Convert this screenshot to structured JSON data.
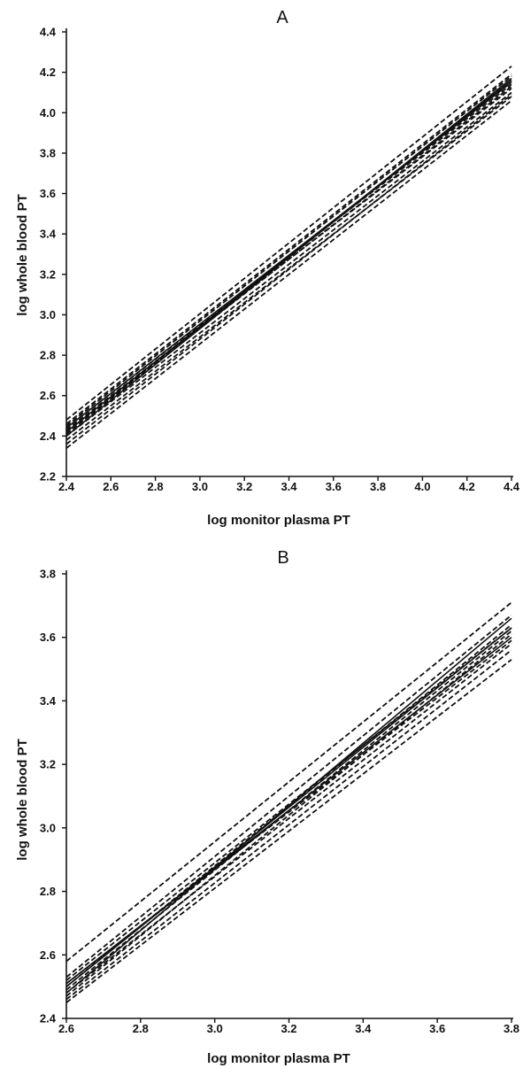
{
  "chart_data": [
    {
      "type": "line",
      "title": "A",
      "xlabel": "log monitor plasma PT",
      "ylabel": "log whole blood PT",
      "xlim": [
        2.4,
        4.4
      ],
      "ylim": [
        2.2,
        4.4
      ],
      "x_ticks": [
        "2.4",
        "2.6",
        "2.8",
        "3.0",
        "3.2",
        "3.4",
        "3.6",
        "3.8",
        "4.0",
        "4.2",
        "4.4"
      ],
      "y_ticks": [
        "2.2",
        "2.4",
        "2.6",
        "2.8",
        "3.0",
        "3.2",
        "3.4",
        "3.6",
        "3.8",
        "4.0",
        "4.2",
        "4.4"
      ],
      "grid": false,
      "series": [
        {
          "style": "solid",
          "x": [
            2.4,
            4.4
          ],
          "y": [
            2.42,
            4.16
          ]
        },
        {
          "style": "solid",
          "x": [
            2.4,
            4.4
          ],
          "y": [
            2.44,
            4.15
          ]
        },
        {
          "style": "solid",
          "x": [
            2.4,
            4.4
          ],
          "y": [
            2.4,
            4.17
          ]
        },
        {
          "style": "dashed",
          "x": [
            2.4,
            4.4
          ],
          "y": [
            2.48,
            4.23
          ]
        },
        {
          "style": "dashed",
          "x": [
            2.4,
            4.4
          ],
          "y": [
            2.46,
            4.19
          ]
        },
        {
          "style": "dashed",
          "x": [
            2.4,
            4.4
          ],
          "y": [
            2.45,
            4.18
          ]
        },
        {
          "style": "dashed",
          "x": [
            2.4,
            4.4
          ],
          "y": [
            2.44,
            4.14
          ]
        },
        {
          "style": "dashed",
          "x": [
            2.4,
            4.4
          ],
          "y": [
            2.43,
            4.12
          ]
        },
        {
          "style": "dashed",
          "x": [
            2.4,
            4.4
          ],
          "y": [
            2.42,
            4.13
          ]
        },
        {
          "style": "dashed",
          "x": [
            2.4,
            4.4
          ],
          "y": [
            2.41,
            4.16
          ]
        },
        {
          "style": "dashed",
          "x": [
            2.4,
            4.4
          ],
          "y": [
            2.4,
            4.1
          ]
        },
        {
          "style": "dashed",
          "x": [
            2.4,
            4.4
          ],
          "y": [
            2.38,
            4.08
          ]
        },
        {
          "style": "dashed",
          "x": [
            2.4,
            4.4
          ],
          "y": [
            2.36,
            4.09
          ]
        },
        {
          "style": "dashed",
          "x": [
            2.4,
            4.4
          ],
          "y": [
            2.34,
            4.06
          ]
        }
      ]
    },
    {
      "type": "line",
      "title": "B",
      "xlabel": "log monitor plasma PT",
      "ylabel": "log whole blood PT",
      "xlim": [
        2.6,
        3.8
      ],
      "ylim": [
        2.4,
        3.8
      ],
      "x_ticks": [
        "2.6",
        "2.8",
        "3.0",
        "3.2",
        "3.4",
        "3.6",
        "3.8"
      ],
      "y_ticks": [
        "2.4",
        "2.6",
        "2.8",
        "3.0",
        "3.2",
        "3.4",
        "3.6",
        "3.8"
      ],
      "grid": false,
      "series": [
        {
          "style": "solid",
          "x": [
            2.6,
            3.8
          ],
          "y": [
            2.5,
            3.63
          ]
        },
        {
          "style": "solid",
          "x": [
            2.6,
            3.8
          ],
          "y": [
            2.48,
            3.66
          ]
        },
        {
          "style": "solid",
          "x": [
            2.6,
            3.8
          ],
          "y": [
            2.51,
            3.6
          ]
        },
        {
          "style": "dashed",
          "x": [
            2.6,
            3.8
          ],
          "y": [
            2.58,
            3.71
          ]
        },
        {
          "style": "dashed",
          "x": [
            2.6,
            3.8
          ],
          "y": [
            2.53,
            3.67
          ]
        },
        {
          "style": "dashed",
          "x": [
            2.6,
            3.8
          ],
          "y": [
            2.52,
            3.63
          ]
        },
        {
          "style": "dashed",
          "x": [
            2.6,
            3.8
          ],
          "y": [
            2.51,
            3.59
          ]
        },
        {
          "style": "dashed",
          "x": [
            2.6,
            3.8
          ],
          "y": [
            2.5,
            3.64
          ]
        },
        {
          "style": "dashed",
          "x": [
            2.6,
            3.8
          ],
          "y": [
            2.49,
            3.62
          ]
        },
        {
          "style": "dashed",
          "x": [
            2.6,
            3.8
          ],
          "y": [
            2.48,
            3.58
          ]
        },
        {
          "style": "dashed",
          "x": [
            2.6,
            3.8
          ],
          "y": [
            2.47,
            3.61
          ]
        },
        {
          "style": "dashed",
          "x": [
            2.6,
            3.8
          ],
          "y": [
            2.46,
            3.56
          ]
        },
        {
          "style": "dashed",
          "x": [
            2.6,
            3.8
          ],
          "y": [
            2.45,
            3.53
          ]
        }
      ]
    }
  ]
}
